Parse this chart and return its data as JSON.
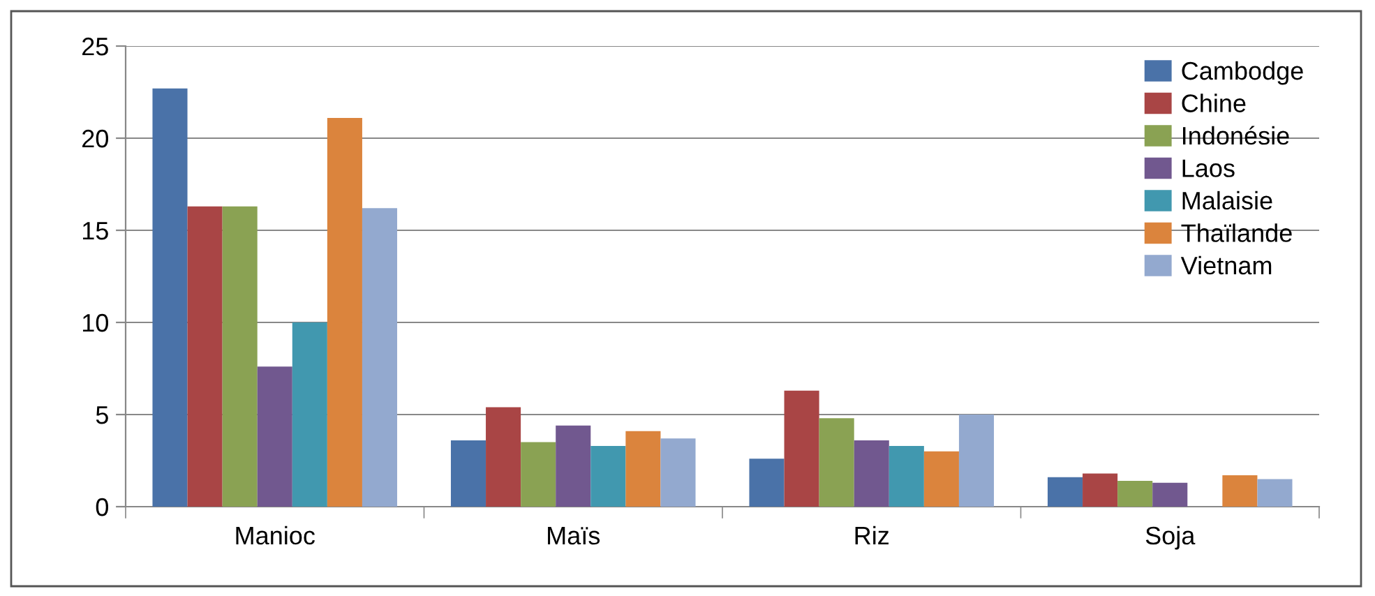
{
  "chart_data": {
    "type": "bar",
    "categories": [
      "Manioc",
      "Maïs",
      "Riz",
      "Soja"
    ],
    "series": [
      {
        "name": "Cambodge",
        "color": "#4a72a8",
        "values": [
          22.7,
          3.6,
          2.6,
          1.6
        ]
      },
      {
        "name": "Chine",
        "color": "#a94545",
        "values": [
          16.3,
          5.4,
          6.3,
          1.8
        ]
      },
      {
        "name": "Indonésie",
        "color": "#8aa253",
        "values": [
          16.3,
          3.5,
          4.8,
          1.4
        ]
      },
      {
        "name": "Laos",
        "color": "#71588f",
        "values": [
          7.6,
          4.4,
          3.6,
          1.3
        ]
      },
      {
        "name": "Malaisie",
        "color": "#4198af",
        "values": [
          10.0,
          3.3,
          3.3,
          null
        ]
      },
      {
        "name": "Thaïlande",
        "color": "#db843d",
        "values": [
          21.1,
          4.1,
          3.0,
          1.7
        ]
      },
      {
        "name": "Vietnam",
        "color": "#93a9cf",
        "values": [
          16.2,
          3.7,
          5.0,
          1.5
        ]
      }
    ],
    "ylim": [
      0,
      25
    ],
    "yticks": [
      0,
      5,
      10,
      15,
      20,
      25
    ],
    "grid": "y",
    "legend": "top right"
  }
}
